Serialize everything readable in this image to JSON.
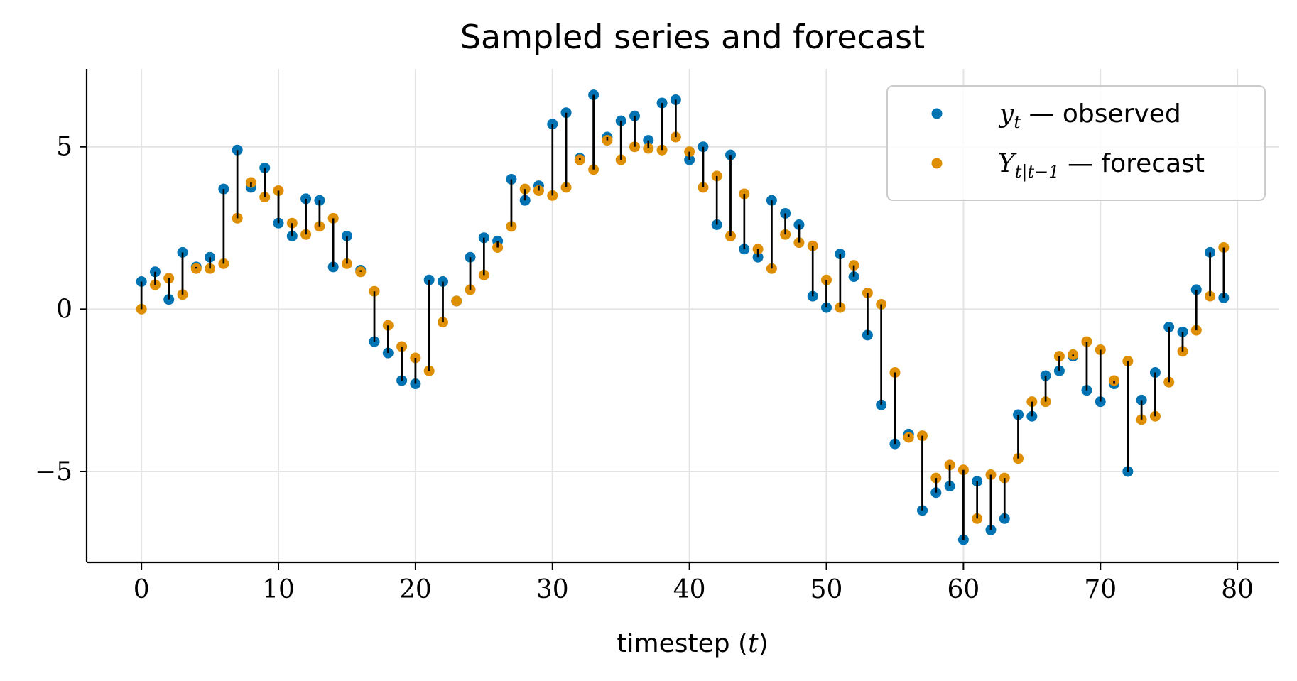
{
  "chart_data": {
    "type": "scatter",
    "title": "Sampled series and forecast",
    "xlabel_prefix": "timestep (",
    "xlabel_var": "t",
    "xlabel_suffix": ")",
    "ylabel": "",
    "xlim": [
      -4,
      83
    ],
    "ylim": [
      -7.8,
      7.4
    ],
    "xticks": [
      0,
      10,
      20,
      30,
      40,
      50,
      60,
      70,
      80
    ],
    "yticks": [
      -5,
      0,
      5
    ],
    "ytick_labels": [
      "−5",
      "0",
      "5"
    ],
    "grid": true,
    "legend_position": "top-right",
    "colors": {
      "observed": "#0173b2",
      "forecast": "#de8f05",
      "stem": "#000000"
    },
    "x": [
      0,
      1,
      2,
      3,
      4,
      5,
      6,
      7,
      8,
      9,
      10,
      11,
      12,
      13,
      14,
      15,
      16,
      17,
      18,
      19,
      20,
      21,
      22,
      23,
      24,
      25,
      26,
      27,
      28,
      29,
      30,
      31,
      32,
      33,
      34,
      35,
      36,
      37,
      38,
      39,
      40,
      41,
      42,
      43,
      44,
      45,
      46,
      47,
      48,
      49,
      50,
      51,
      52,
      53,
      54,
      55,
      56,
      57,
      58,
      59,
      60,
      61,
      62,
      63,
      64,
      65,
      66,
      67,
      68,
      69,
      70,
      71,
      72,
      73,
      74,
      75,
      76,
      77,
      78,
      79
    ],
    "series": [
      {
        "key": "observed",
        "legend_math": "y",
        "legend_sub": "t",
        "legend_text": " — observed",
        "values": [
          0.85,
          1.15,
          0.3,
          1.75,
          1.3,
          1.6,
          3.7,
          4.9,
          3.75,
          4.35,
          2.65,
          2.25,
          3.4,
          3.35,
          1.3,
          2.25,
          1.2,
          -1.0,
          -1.35,
          -2.2,
          -2.3,
          0.9,
          0.85,
          0.25,
          1.6,
          2.2,
          2.1,
          4.0,
          3.35,
          3.8,
          5.7,
          6.05,
          4.65,
          6.6,
          5.3,
          5.8,
          5.95,
          5.2,
          6.35,
          6.45,
          4.6,
          5.0,
          2.6,
          4.75,
          1.85,
          1.6,
          3.35,
          2.95,
          2.6,
          0.4,
          0.05,
          1.7,
          1.0,
          -0.8,
          -2.95,
          -4.15,
          -3.85,
          -6.2,
          -5.65,
          -5.45,
          -7.1,
          -5.3,
          -6.8,
          -6.45,
          -3.25,
          -3.3,
          -2.05,
          -1.9,
          -1.45,
          -2.5,
          -2.85,
          -2.3,
          -5.0,
          -2.8,
          -1.95,
          -0.55,
          -0.7,
          0.6,
          1.75,
          0.35
        ]
      },
      {
        "key": "forecast",
        "legend_math": "Y",
        "legend_sub": "t|t−1",
        "legend_text": " — forecast",
        "values": [
          0.0,
          0.75,
          0.95,
          0.45,
          1.25,
          1.25,
          1.4,
          2.8,
          3.9,
          3.45,
          3.65,
          2.65,
          2.3,
          2.55,
          2.8,
          1.4,
          1.15,
          0.55,
          -0.5,
          -1.15,
          -1.5,
          -1.9,
          -0.4,
          0.25,
          0.6,
          1.05,
          1.9,
          2.55,
          3.7,
          3.65,
          3.5,
          3.75,
          4.6,
          4.3,
          5.2,
          4.6,
          5.0,
          4.95,
          4.9,
          5.3,
          4.85,
          3.75,
          4.1,
          2.25,
          3.55,
          1.85,
          1.25,
          2.3,
          2.05,
          1.95,
          0.9,
          0.05,
          1.35,
          0.5,
          0.15,
          -1.95,
          -3.95,
          -3.9,
          -5.2,
          -4.8,
          -4.95,
          -6.45,
          -5.1,
          -5.2,
          -4.6,
          -2.85,
          -2.85,
          -1.45,
          -1.4,
          -1.0,
          -1.25,
          -2.2,
          -1.6,
          -3.4,
          -3.3,
          -2.25,
          -1.3,
          -0.65,
          0.4,
          1.9
        ]
      }
    ]
  }
}
